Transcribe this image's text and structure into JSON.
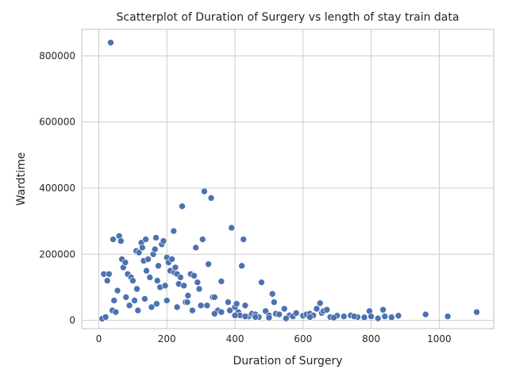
{
  "chart_data": {
    "type": "scatter",
    "title": "Scatterplot of Duration of Surgery vs length of stay train data",
    "xlabel": "Duration of Surgery",
    "ylabel": "Wardtime",
    "xlim": [
      -50,
      1160
    ],
    "ylim": [
      -25000,
      880000
    ],
    "xticks": [
      0,
      200,
      400,
      600,
      800,
      1000
    ],
    "yticks": [
      0,
      200000,
      400000,
      600000,
      800000
    ],
    "xtick_labels": [
      "0",
      "200",
      "400",
      "600",
      "800",
      "1000"
    ],
    "ytick_labels": [
      "0",
      "200000",
      "400000",
      "600000",
      "800000"
    ],
    "grid": true,
    "marker_color": "#4c72b0",
    "points": {
      "x": [
        35,
        42,
        60,
        65,
        68,
        72,
        78,
        85,
        95,
        100,
        110,
        112,
        118,
        125,
        128,
        132,
        138,
        140,
        145,
        150,
        160,
        165,
        168,
        172,
        175,
        180,
        185,
        190,
        195,
        200,
        205,
        210,
        215,
        220,
        222,
        225,
        230,
        235,
        240,
        245,
        250,
        255,
        262,
        270,
        280,
        285,
        290,
        295,
        300,
        305,
        310,
        318,
        322,
        330,
        335,
        340,
        350,
        360,
        380,
        385,
        390,
        400,
        405,
        410,
        415,
        420,
        425,
        430,
        440,
        450,
        460,
        470,
        478,
        490,
        500,
        510,
        515,
        520,
        530,
        545,
        560,
        570,
        580,
        600,
        610,
        620,
        630,
        640,
        650,
        655,
        660,
        670,
        680,
        700,
        720,
        740,
        760,
        780,
        795,
        800,
        835,
        840,
        860,
        880,
        960,
        1025,
        1110,
        10,
        15,
        20,
        25,
        30,
        40,
        45,
        50,
        55,
        80,
        90,
        105,
        115,
        135,
        155,
        170,
        200,
        230,
        260,
        275,
        300,
        340,
        360,
        400,
        430,
        460,
        500,
        550,
        620,
        690,
        750,
        820,
        860
      ],
      "y": [
        840000,
        245000,
        255000,
        240000,
        185000,
        160000,
        175000,
        140000,
        130000,
        120000,
        210000,
        95000,
        205000,
        235000,
        220000,
        180000,
        245000,
        150000,
        185000,
        130000,
        200000,
        215000,
        250000,
        120000,
        165000,
        100000,
        230000,
        240000,
        105000,
        190000,
        175000,
        150000,
        185000,
        270000,
        145000,
        160000,
        140000,
        110000,
        130000,
        345000,
        105000,
        55000,
        75000,
        140000,
        135000,
        220000,
        115000,
        95000,
        45000,
        245000,
        390000,
        45000,
        170000,
        370000,
        70000,
        70000,
        30000,
        118000,
        55000,
        30000,
        280000,
        40000,
        50000,
        25000,
        15000,
        165000,
        245000,
        45000,
        12000,
        20000,
        18000,
        10000,
        115000,
        28000,
        15000,
        80000,
        55000,
        20000,
        18000,
        35000,
        15000,
        12000,
        22000,
        14000,
        18000,
        20000,
        15000,
        35000,
        52000,
        22000,
        28000,
        32000,
        10000,
        14000,
        12000,
        15000,
        10000,
        9000,
        28000,
        12000,
        32000,
        12000,
        11000,
        14000,
        18000,
        12000,
        25000,
        5000,
        140000,
        10000,
        120000,
        140000,
        30000,
        60000,
        25000,
        90000,
        70000,
        45000,
        60000,
        30000,
        65000,
        40000,
        50000,
        60000,
        40000,
        55000,
        30000,
        45000,
        20000,
        25000,
        15000,
        12000,
        10000,
        8000,
        6000,
        10000,
        8000,
        12000,
        6000,
        9000
      ]
    }
  }
}
